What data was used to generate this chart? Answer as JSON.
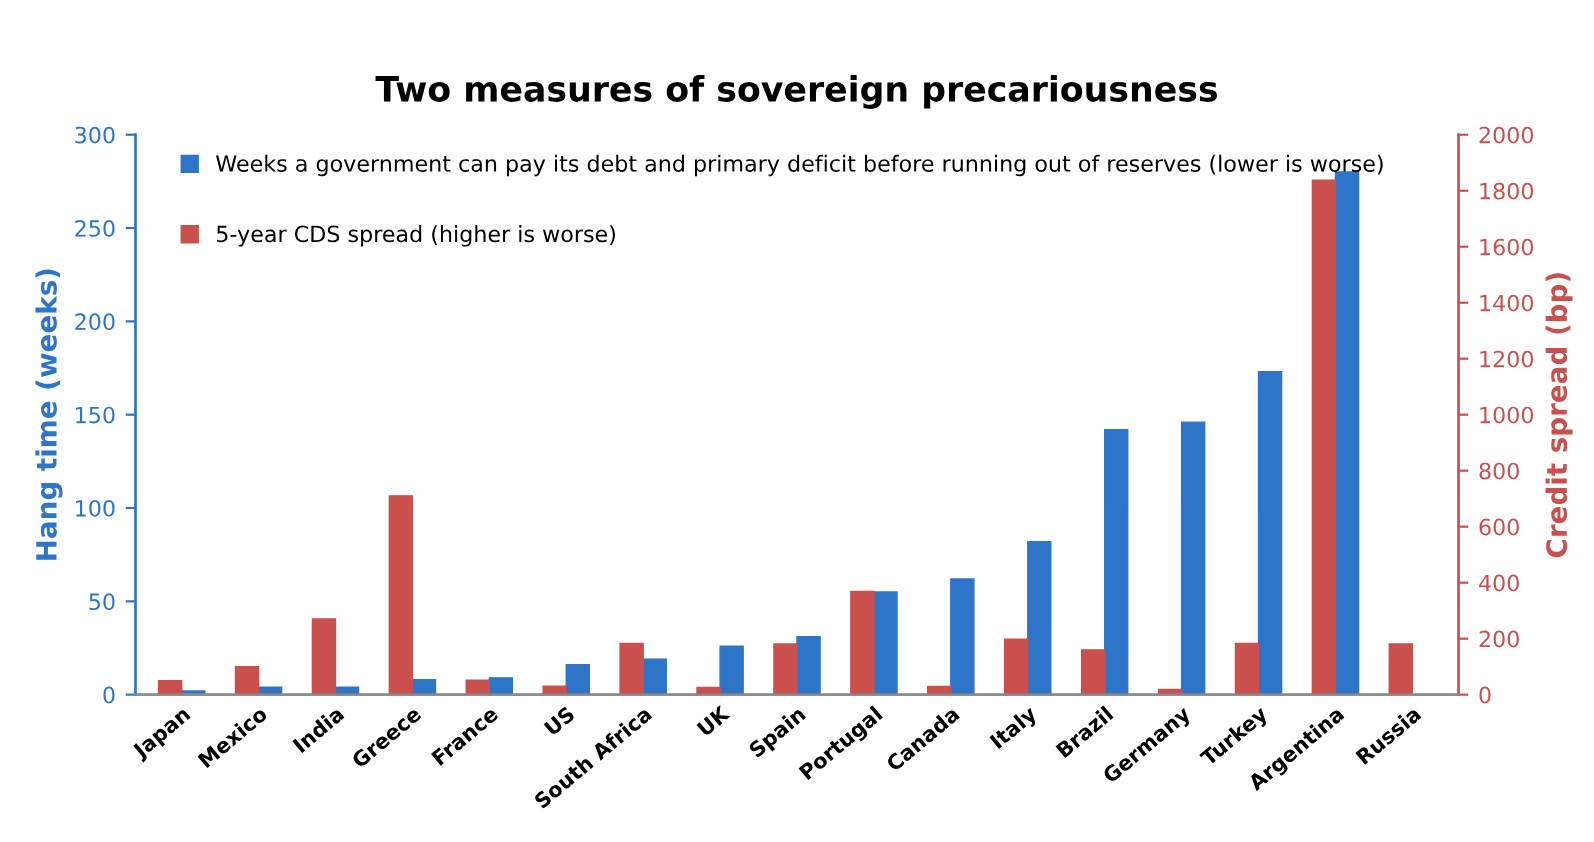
{
  "chart_data": {
    "type": "bar",
    "title": "Two measures of sovereign precariousness",
    "ylabel": "Hang time (weeks)",
    "y2label": "Credit spread (bp)",
    "categories": [
      "Japan",
      "Mexico",
      "India",
      "Greece",
      "France",
      "US",
      "South Africa",
      "UK",
      "Spain",
      "Portugal",
      "Canada",
      "Italy",
      "Brazil",
      "Germany",
      "Turkey",
      "Argentina",
      "Russia"
    ],
    "series": [
      {
        "name": "5-year CDS spread (higher is worse)",
        "color": "#c9504d",
        "axis": "y2",
        "values": [
          50,
          100,
          270,
          710,
          52,
          30,
          183,
          26,
          181,
          369,
          29,
          198,
          160,
          19,
          183,
          1838,
          181
        ]
      },
      {
        "name": "Weeks a government can pay its debt and primary deficit before running out of reserves (lower is worse)",
        "color": "#2e75c9",
        "values": [
          2,
          4,
          4,
          8,
          9,
          16,
          19,
          26,
          31,
          55,
          62,
          82,
          142,
          146,
          173,
          280,
          null
        ]
      }
    ],
    "ylim": [
      0,
      300
    ],
    "yticks": [
      0,
      50,
      100,
      150,
      200,
      250,
      300
    ],
    "y2lim": [
      0,
      2000
    ],
    "y2ticks": [
      0,
      200,
      400,
      600,
      800,
      1000,
      1200,
      1400,
      1600,
      1800,
      2000
    ],
    "grid": false,
    "legend": "top left"
  }
}
